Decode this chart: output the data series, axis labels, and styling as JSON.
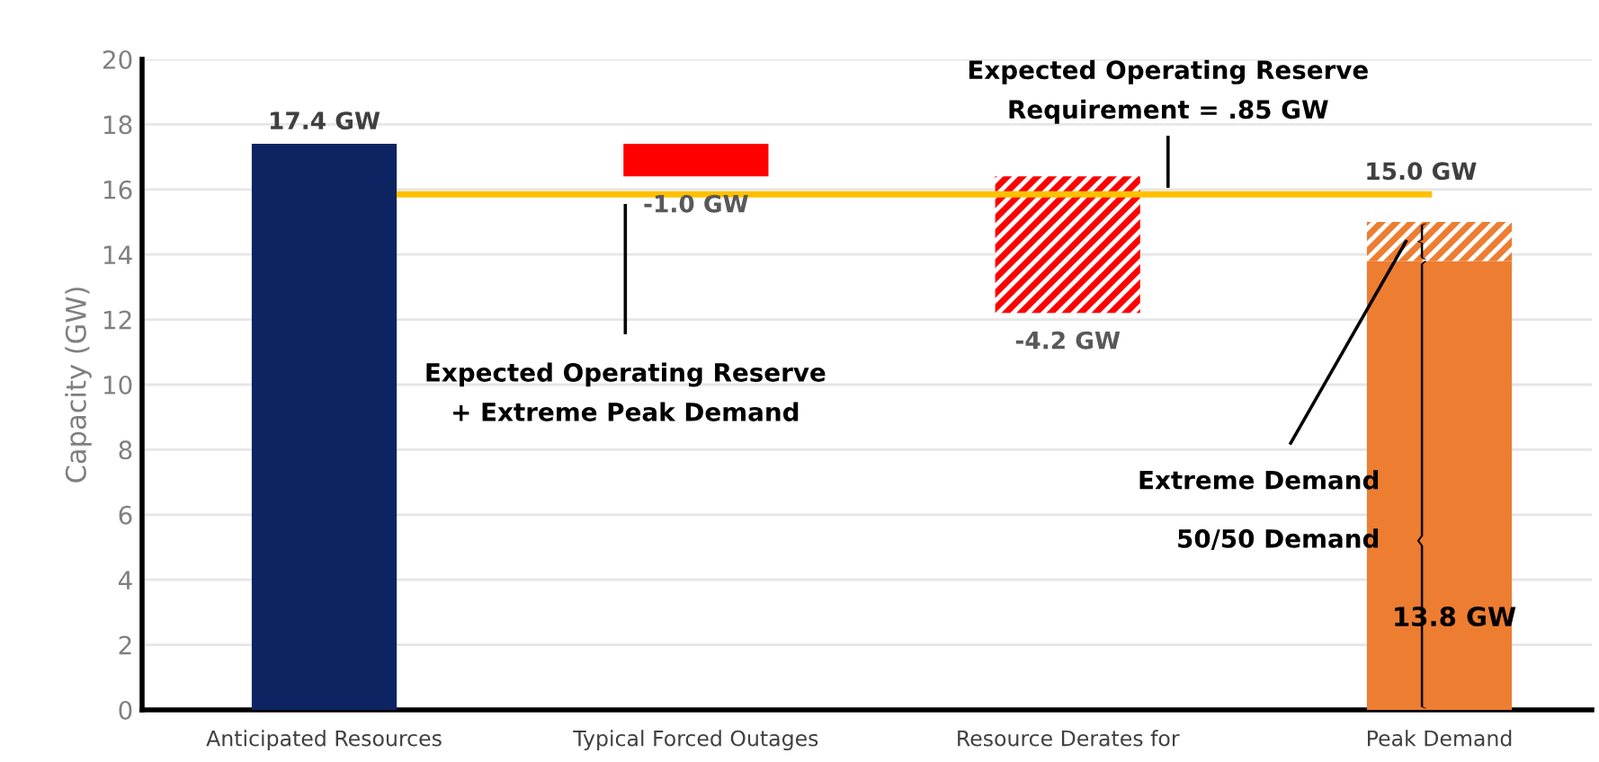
{
  "chart_data": {
    "type": "bar",
    "ylabel": "Capacity (GW)",
    "categories": [
      "Anticipated Resources",
      "Typical Forced Outages",
      "Resource Derates for",
      "Peak Demand"
    ],
    "stacked": true,
    "series": [
      {
        "colors": [
          "#0c2461",
          "#ff0000",
          null,
          "#ed7d31"
        ],
        "values": [
          17.4,
          -1.0,
          null,
          13.8
        ],
        "base": [
          0,
          17.4,
          null,
          0
        ],
        "value_labels": [
          "17.4 GW",
          "-1.0 GW",
          null,
          "13.8 GW"
        ]
      },
      {
        "colors": [
          null,
          null,
          "#ff0000",
          "#ed7d31"
        ],
        "values": [
          null,
          null,
          -4.2,
          1.2
        ],
        "base": [
          null,
          null,
          16.4,
          13.8
        ],
        "value_labels": [
          null,
          null,
          "-4.2 GW",
          null
        ]
      }
    ],
    "totals": [
      null,
      null,
      null,
      "15.0 GW"
    ],
    "ylim": [
      0,
      20
    ],
    "yticks": [
      0,
      2,
      4,
      6,
      8,
      10,
      12,
      14,
      16,
      18,
      20
    ],
    "grid": "y",
    "ref_lines": [
      {
        "axis": "y",
        "value": 15.85,
        "color": "#ffc000"
      }
    ],
    "annotations": [
      "Expected Operating Reserve\nRequirement = .85 GW",
      "Expected Operating Reserve\n+ Extreme Peak Demand",
      "Extreme Demand",
      "50/50 Demand"
    ]
  }
}
